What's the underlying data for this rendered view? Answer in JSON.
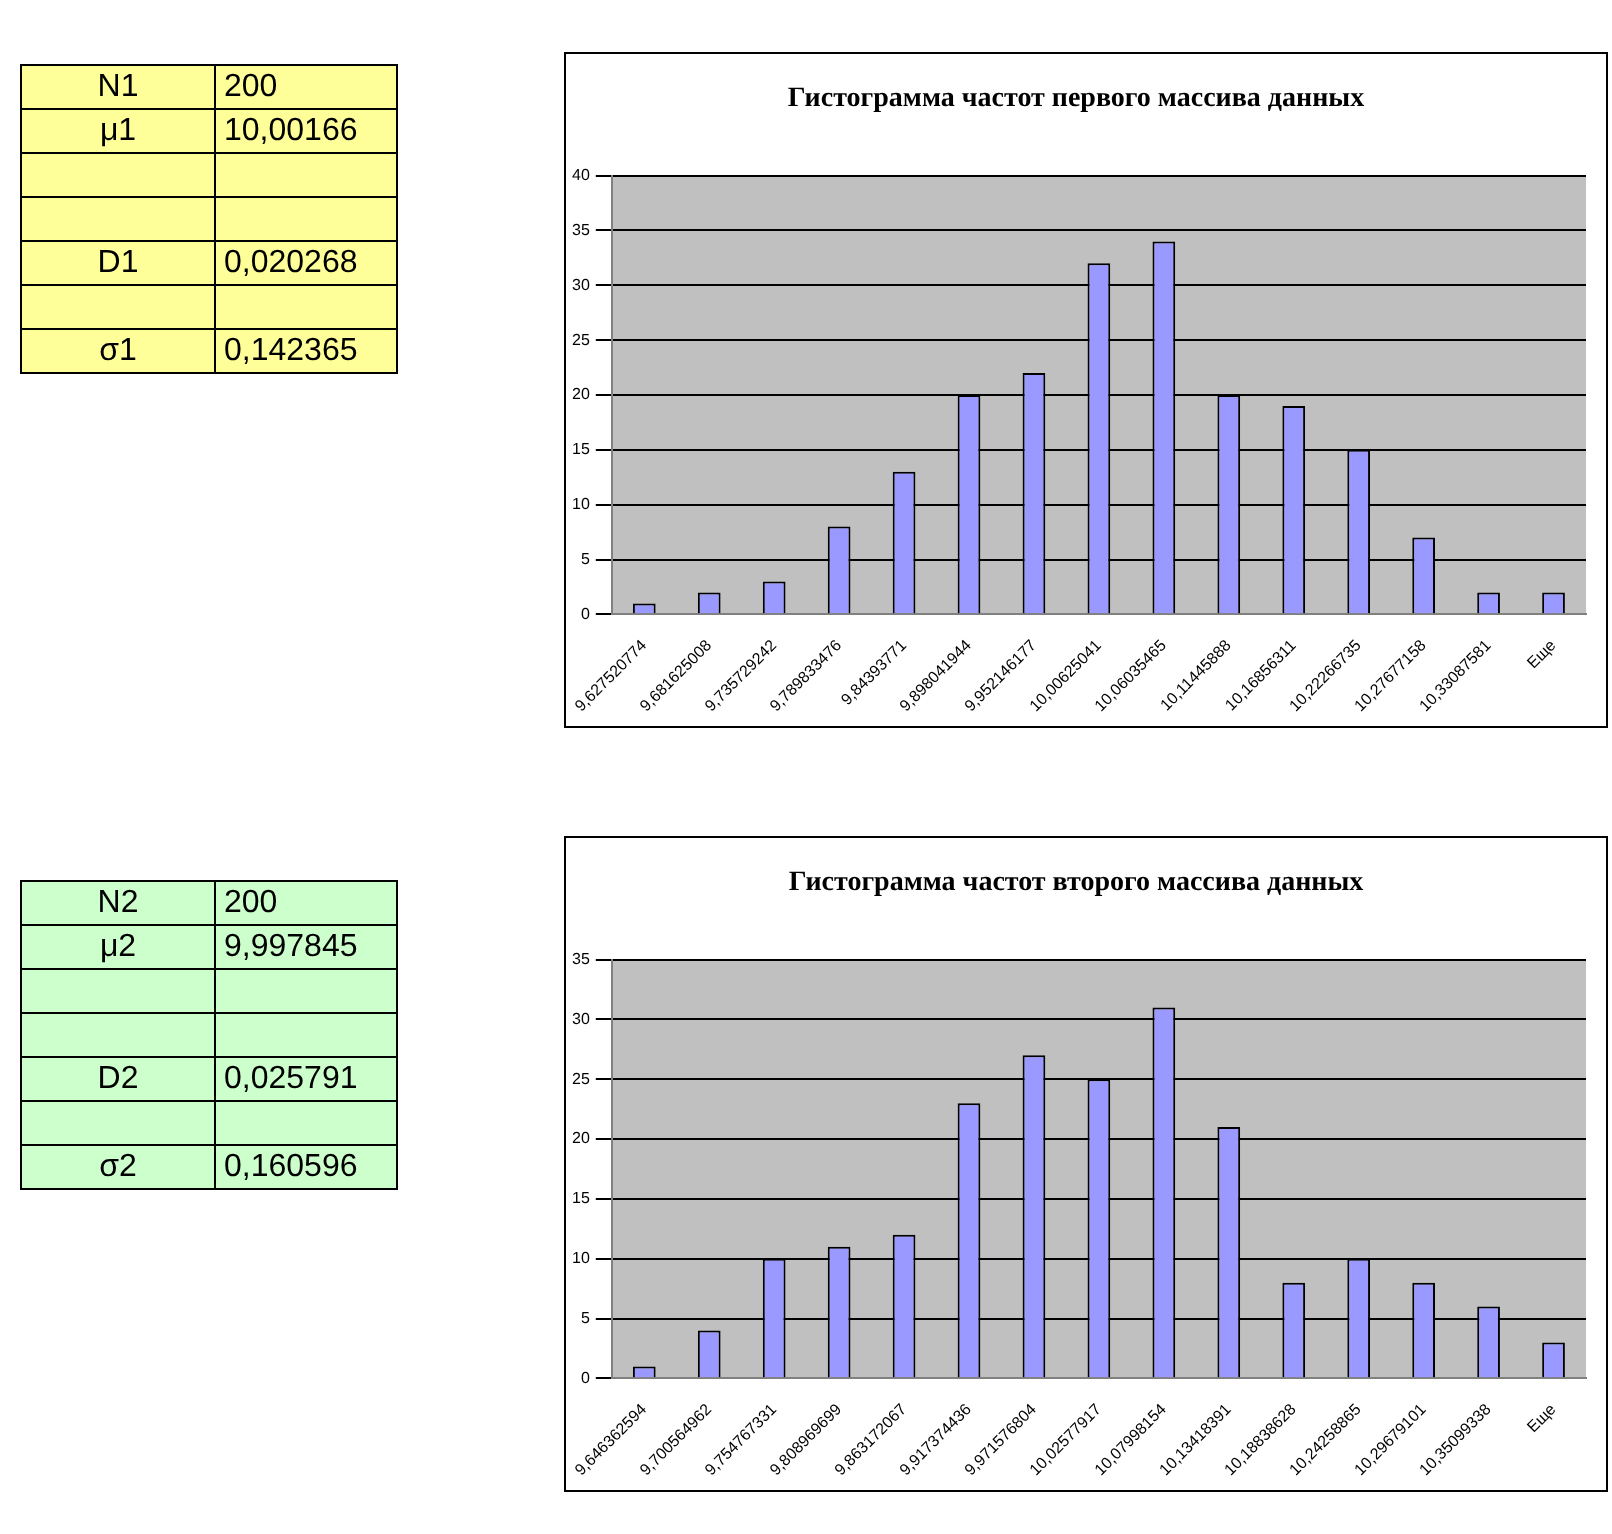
{
  "chart_data": [
    {
      "type": "other",
      "categories": [
        "N1",
        "μ1",
        null,
        null,
        "D1",
        null,
        "σ1"
      ],
      "value_labels": [
        "200",
        "10,00166",
        null,
        null,
        "0,020268",
        null,
        "0,142365"
      ],
      "color": "#ffff99"
    },
    {
      "type": "bar",
      "title": "Гистограмма частот первого массива данных",
      "categories": [
        "9,627520774",
        "9,681625008",
        "9,735729242",
        "9,789833476",
        "9,84393771",
        "9,898041944",
        "9,952146177",
        "10,00625041",
        "10,06035465",
        "10,11445888",
        "10,16856311",
        "10,22266735",
        "10,27677158",
        "10,33087581",
        "Еще"
      ],
      "values": [
        1,
        2,
        3,
        8,
        13,
        20,
        22,
        32,
        34,
        20,
        19,
        15,
        7,
        2,
        2
      ],
      "color": "#9999ff",
      "ylim": [
        0,
        40
      ],
      "yticks": [
        0,
        5,
        10,
        15,
        20,
        25,
        30,
        35,
        40
      ],
      "grid": "y"
    },
    {
      "type": "other",
      "categories": [
        "N2",
        "μ2",
        null,
        null,
        "D2",
        null,
        "σ2"
      ],
      "value_labels": [
        "200",
        "9,997845",
        null,
        null,
        "0,025791",
        null,
        "0,160596"
      ],
      "color": "#ccffcc"
    },
    {
      "type": "bar",
      "title": "Гистограмма частот второго массива данных",
      "categories": [
        "9,646362594",
        "9,700564962",
        "9,754767331",
        "9,808969699",
        "9,863172067",
        "9,917374436",
        "9,971576804",
        "10,02577917",
        "10,07998154",
        "10,13418391",
        "10,18838628",
        "10,24258865",
        "10,29679101",
        "10,35099338",
        "Еще"
      ],
      "values": [
        1,
        4,
        10,
        11,
        12,
        23,
        27,
        25,
        31,
        21,
        8,
        10,
        8,
        6,
        3
      ],
      "color": "#9999ff",
      "ylim": [
        0,
        35
      ],
      "yticks": [
        0,
        5,
        10,
        15,
        20,
        25,
        30,
        35
      ],
      "grid": "y"
    }
  ]
}
